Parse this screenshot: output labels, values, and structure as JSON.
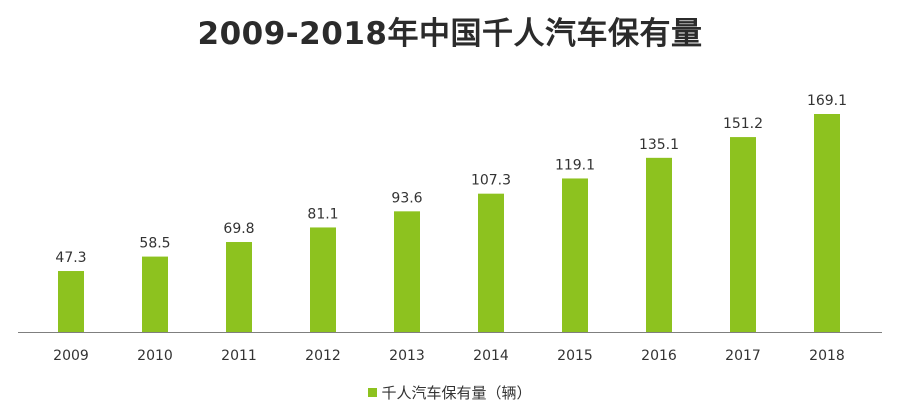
{
  "chart_data": {
    "type": "bar",
    "title": "2009-2018年中国千人汽车保有量",
    "categories": [
      "2009",
      "2010",
      "2011",
      "2012",
      "2013",
      "2014",
      "2015",
      "2016",
      "2017",
      "2018"
    ],
    "series": [
      {
        "name": "千人汽车保有量（辆）",
        "values": [
          47.3,
          58.5,
          69.8,
          81.1,
          93.6,
          107.3,
          119.1,
          135.1,
          151.2,
          169.1
        ]
      }
    ],
    "value_labels": [
      "47.3",
      "58.5",
      "69.8",
      "81.1",
      "93.6",
      "107.3",
      "119.1",
      "135.1",
      "151.2",
      "169.1"
    ],
    "xlabel": "",
    "ylabel": "",
    "ylim": [
      0,
      169.1
    ],
    "grid": false,
    "legend_position": "bottom-center",
    "bar_color": "#8dc21f"
  }
}
